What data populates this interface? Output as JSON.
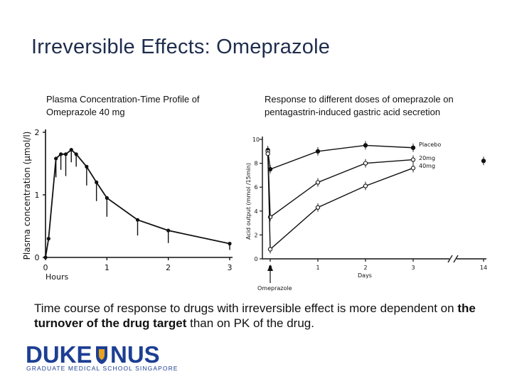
{
  "slide": {
    "title": "Irreversible Effects: Omeprazole",
    "caption_left": "Plasma Concentration-Time Profile of Omeprazole 40 mg",
    "caption_right": "Response to different doses of omeprazole on pentagastrin-induced gastric acid secretion",
    "body_plain": "Time course of response to drugs with irreversible effect is more dependent on ",
    "body_bold": "the turnover of the drug target",
    "body_end": " than on PK of the drug.",
    "logo": {
      "word_left": "DUKE",
      "word_right": "NUS",
      "subtitle": "GRADUATE MEDICAL SCHOOL SINGAPORE",
      "color": "#1d3f93",
      "accent": "#e9a21f"
    }
  },
  "chart_data": [
    {
      "type": "line",
      "ylabel": "Plasma concentration (μmol/l)",
      "xlabel": "Hours",
      "xlim": [
        0,
        3
      ],
      "ylim": [
        0,
        2
      ],
      "xticks": [
        "0",
        "1",
        "2",
        "3"
      ],
      "yticks": [
        "0",
        "1",
        "2"
      ],
      "series": [
        {
          "x": [
            0,
            0.05,
            0.17,
            0.25,
            0.33,
            0.42,
            0.5,
            0.67,
            0.83,
            1.0,
            1.5,
            2.0,
            3.0
          ],
          "y": [
            0.0,
            0.3,
            1.58,
            1.65,
            1.65,
            1.72,
            1.65,
            1.45,
            1.2,
            0.95,
            0.6,
            0.43,
            0.22
          ],
          "err": [
            0.0,
            0.0,
            0.3,
            0.25,
            0.35,
            0.2,
            0.2,
            0.3,
            0.3,
            0.3,
            0.25,
            0.2,
            0.1
          ]
        }
      ]
    },
    {
      "type": "line",
      "ylabel": "Acid output (mmol /15min)",
      "xlabel": "Days",
      "xlim": [
        -0.3,
        4.5
      ],
      "ylim": [
        0,
        10
      ],
      "xticks": [
        "0",
        "1",
        "2",
        "3",
        "14"
      ],
      "yticks": [
        "0",
        "2",
        "4",
        "6",
        "8",
        "10"
      ],
      "annotation": "Omeprazole",
      "series": [
        {
          "name": "Placebo",
          "marker": "filled",
          "x": [
            -0.05,
            0.0,
            1.0,
            2.0,
            3.0,
            4.5
          ],
          "y": [
            9.1,
            7.5,
            9.0,
            9.5,
            9.3,
            8.2
          ]
        },
        {
          "name": "20mg",
          "marker": "open",
          "x": [
            -0.05,
            0.0,
            1.0,
            2.0,
            3.0
          ],
          "y": [
            9.0,
            3.5,
            6.4,
            8.0,
            8.3
          ]
        },
        {
          "name": "40mg",
          "marker": "open",
          "x": [
            -0.05,
            0.0,
            1.0,
            2.0,
            3.0
          ],
          "y": [
            8.8,
            0.8,
            4.3,
            6.1,
            7.6
          ]
        }
      ]
    }
  ]
}
